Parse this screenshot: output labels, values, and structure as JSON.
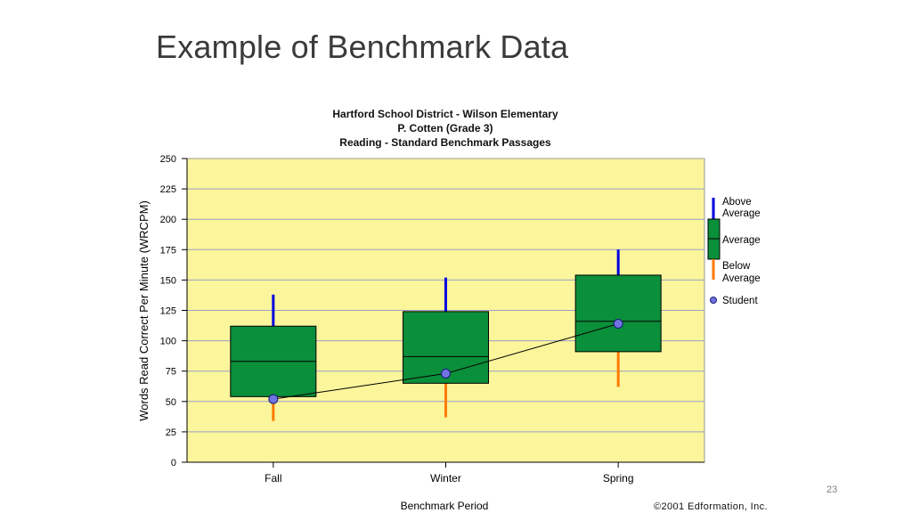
{
  "slide": {
    "title": "Example of Benchmark Data",
    "page_number": "23"
  },
  "chart_data": {
    "type": "box",
    "title_lines": [
      "Hartford School District - Wilson Elementary",
      "P. Cotten (Grade 3)",
      "Reading - Standard Benchmark Passages"
    ],
    "xlabel": "Benchmark Period",
    "ylabel": "Words Read Correct Per Minute (WRCPM)",
    "ylim": [
      0,
      250
    ],
    "yticks": [
      0,
      25,
      50,
      75,
      100,
      125,
      150,
      175,
      200,
      225,
      250
    ],
    "ytick_labels": [
      "0",
      "25",
      "50",
      "75",
      "100",
      "125",
      "150",
      "175",
      "200",
      "225",
      "250"
    ],
    "grid": true,
    "categories": [
      "Fall",
      "Winter",
      "Spring"
    ],
    "boxes": [
      {
        "low": 34,
        "q1": 54,
        "median": 83,
        "q3": 112,
        "high": 138
      },
      {
        "low": 37,
        "q1": 65,
        "median": 87,
        "q3": 124,
        "high": 152
      },
      {
        "low": 62,
        "q1": 91,
        "median": 116,
        "q3": 154,
        "high": 175
      }
    ],
    "student_values": [
      52,
      73,
      114
    ],
    "legend": {
      "position": "right",
      "above_label_1": "Above",
      "above_label_2": "Average",
      "average_label": "Average",
      "below_label_1": "Below",
      "below_label_2": "Average",
      "student_label": "Student"
    },
    "colors": {
      "plot_bg": "#fbf59b",
      "box_fill": "#0a8f3b",
      "above_whisker": "#0000e0",
      "below_whisker": "#ff7a00",
      "student_marker": "#6f74e0",
      "gridline": "#9a9fc9"
    },
    "copyright": "©2001 Edformation, Inc."
  }
}
